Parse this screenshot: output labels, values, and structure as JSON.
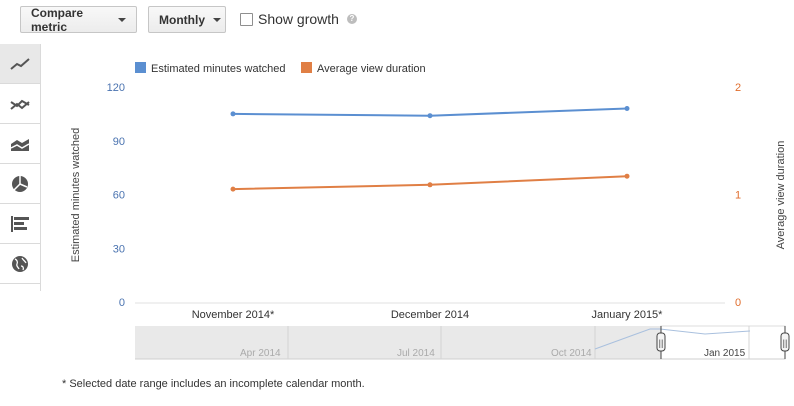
{
  "toolbar": {
    "compare_label": "Compare metric",
    "period_label": "Monthly",
    "show_growth_label": "Show growth",
    "help_glyph": "?"
  },
  "sidebar": {
    "items": [
      {
        "icon": "line-chart-icon",
        "active": true
      },
      {
        "icon": "multiline-chart-icon",
        "active": false
      },
      {
        "icon": "stacked-area-chart-icon",
        "active": false
      },
      {
        "icon": "pie-chart-icon",
        "active": false
      },
      {
        "icon": "bar-chart-icon",
        "active": false
      },
      {
        "icon": "globe-map-icon",
        "active": false
      }
    ]
  },
  "chart_data": {
    "type": "line",
    "categories": [
      "November 2014*",
      "December 2014",
      "January 2015*"
    ],
    "series": [
      {
        "name": "Estimated minutes watched",
        "color": "#5b8fd1",
        "axis": "left",
        "values": [
          105,
          104,
          108
        ]
      },
      {
        "name": "Average view duration",
        "color": "#e07f45",
        "axis": "right",
        "values": [
          1.05,
          1.09,
          1.17
        ]
      }
    ],
    "y_left": {
      "label": "Estimated minutes watched",
      "ticks": [
        "120",
        "90",
        "60",
        "30",
        "0"
      ],
      "ylim": [
        0,
        120
      ],
      "color": "#4a73b0"
    },
    "y_right": {
      "label": "Average view duration",
      "ticks": [
        "2",
        "1",
        "0"
      ],
      "ylim": [
        0,
        2
      ],
      "color": "#e06d2c"
    },
    "legend_position": "top-left",
    "grid": false
  },
  "navigator": {
    "labels": [
      "Apr 2014",
      "Jul 2014",
      "Oct 2014",
      "Jan 2015"
    ],
    "handle_glyph": "||"
  },
  "footnote": "* Selected date range includes an incomplete calendar month."
}
